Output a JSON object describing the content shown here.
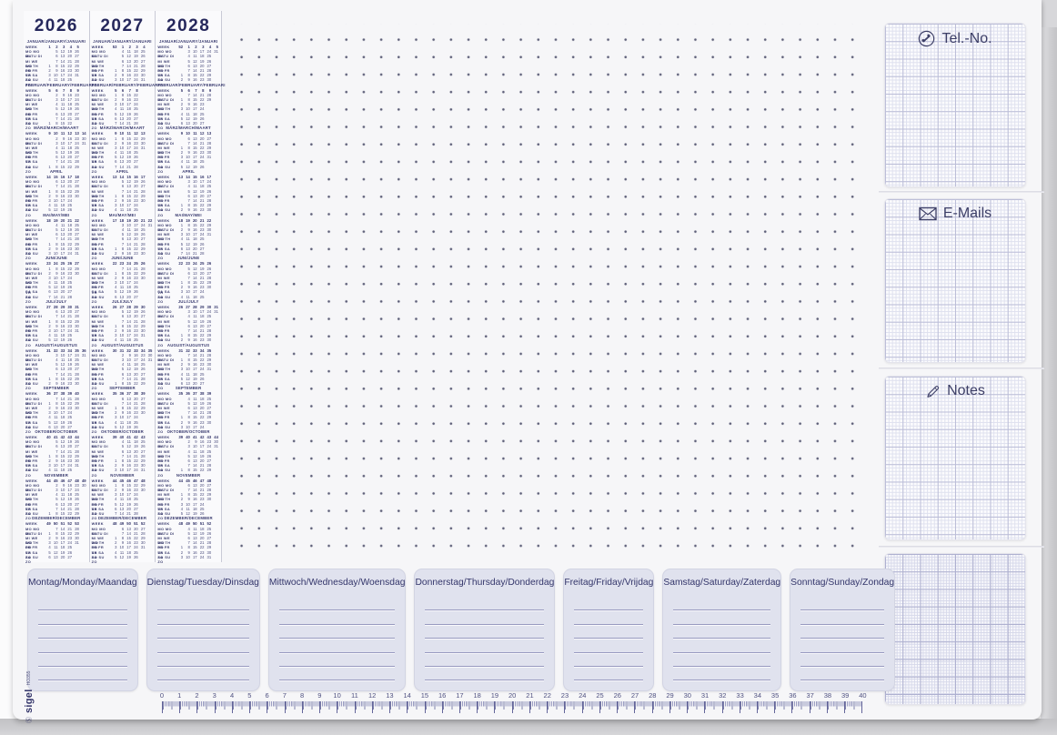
{
  "brand": {
    "name": "sigel",
    "registered_mark": "Ⓢ",
    "product_code": "HO355"
  },
  "calendar": {
    "years": [
      2026,
      2027,
      2028
    ],
    "week_label": "WEEK",
    "month_names": [
      "JANUAR/JANUARY/JANUARI",
      "FEBRUAR/FEBRUARY/FEBRUARI",
      "MÄRZ/MARCH/MAART",
      "APRIL",
      "MAI/MAY/MEI",
      "JUNI/JUNE",
      "JULI/JULY",
      "AUGUST/AUGUSTUS",
      "SEPTEMBER",
      "OKTOBER/OCTOBER",
      "NOVEMBER",
      "DEZEMBER/DECEMBER"
    ],
    "weekday_labels": [
      "MO MO MA",
      "DI TU DI",
      "MI WE WO",
      "DO TH DO",
      "FR FR VR",
      "SA SA ZA",
      "SO SU ZO"
    ]
  },
  "right_panels": {
    "tel": {
      "label": "Tel.-No.",
      "icon": "phone-icon"
    },
    "emails": {
      "label": "E-Mails",
      "icon": "envelope-icon"
    },
    "notes": {
      "label": "Notes",
      "icon": "pencil-icon"
    },
    "grid": {
      "label": "",
      "icon": ""
    }
  },
  "week_strips": {
    "days": [
      "Montag/Monday/Maandag",
      "Dienstag/Tuesday/Dinsdag",
      "Mittwoch/Wednesday/Woensdag",
      "Donnerstag/Thursday/Donderdag",
      "Freitag/Friday/Vrijdag",
      "Samstag/Saturday/Zaterdag",
      "Sonntag/Sunday/Zondag"
    ],
    "line_count": 6
  },
  "ruler": {
    "numbers": [
      0,
      1,
      2,
      3,
      4,
      5,
      6,
      7,
      8,
      9,
      10,
      11,
      12,
      13,
      14,
      15,
      16,
      17,
      18,
      19,
      20,
      21,
      22,
      23,
      24,
      25,
      26,
      27,
      28,
      29,
      30,
      31,
      32,
      33,
      34,
      35,
      36,
      37,
      38,
      39,
      40
    ]
  },
  "colors": {
    "ink_navy": "#33356a",
    "calendar_ink": "#4c4e7e",
    "dot": "#5d5f78",
    "pad_paper": "#f6f6f8",
    "panel_fill": "#e0e2ee",
    "grid_major": "#bcbed8",
    "grid_fine": "#dfe1ef",
    "backing_grey": "#c8c8cb"
  }
}
